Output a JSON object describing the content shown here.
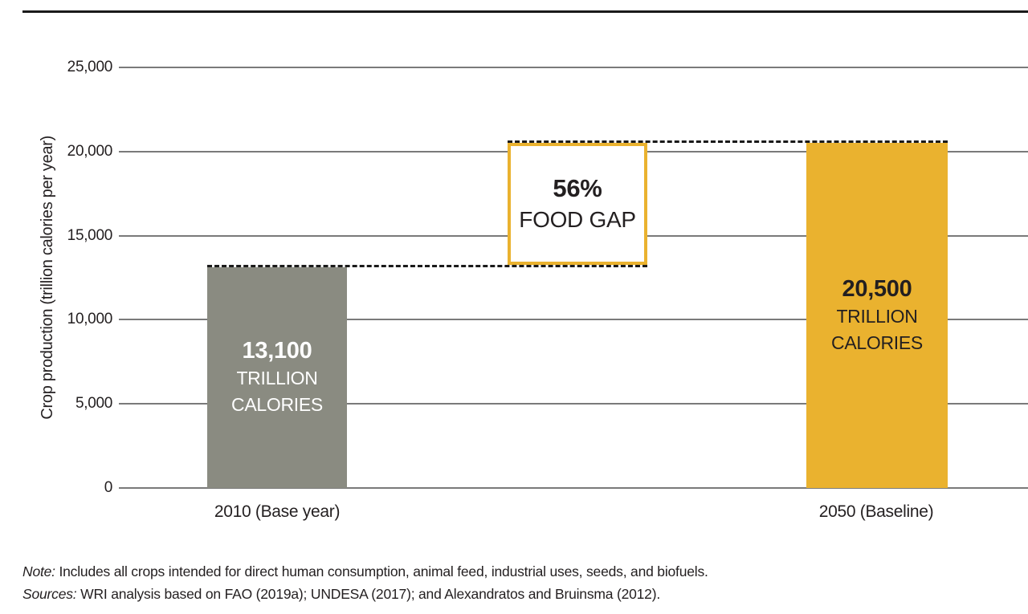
{
  "chart_data": {
    "type": "bar",
    "title": "",
    "xlabel": "",
    "ylabel": "Crop production (trillion calories per year)",
    "ylim": [
      0,
      25000
    ],
    "yticks": [
      0,
      5000,
      10000,
      15000,
      20000,
      25000
    ],
    "ytick_labels": [
      "0",
      "5,000",
      "10,000",
      "15,000",
      "20,000",
      "25,000"
    ],
    "categories": [
      "2010 (Base year)",
      "2050 (Baseline)"
    ],
    "values": [
      13100,
      20500
    ],
    "bar_value_labels": [
      "13,100",
      "20,500"
    ],
    "unit_lines": [
      "TRILLION",
      "CALORIES"
    ],
    "bar_colors": [
      "#8a8b81",
      "#eab22f"
    ],
    "annotation": {
      "pct": "56%",
      "label": "FOOD GAP",
      "from_value": 13100,
      "to_value": 20500
    },
    "grid": true,
    "legend": false
  },
  "footnote": {
    "note_label": "Note:",
    "note_text": " Includes all crops intended for direct human consumption, animal feed, industrial uses, seeds, and biofuels.",
    "sources_label": "Sources:",
    "sources_text": " WRI analysis based on FAO (2019a); UNDESA (2017); and Alexandratos and Bruinsma (2012)."
  },
  "colors": {
    "accent_yellow": "#eab22f",
    "bar_gray": "#8a8b81",
    "text": "#231f20",
    "gridline": "#4d4d4d",
    "dotted_line": "#1a1a1a",
    "top_rule": "#1a1a1a"
  }
}
